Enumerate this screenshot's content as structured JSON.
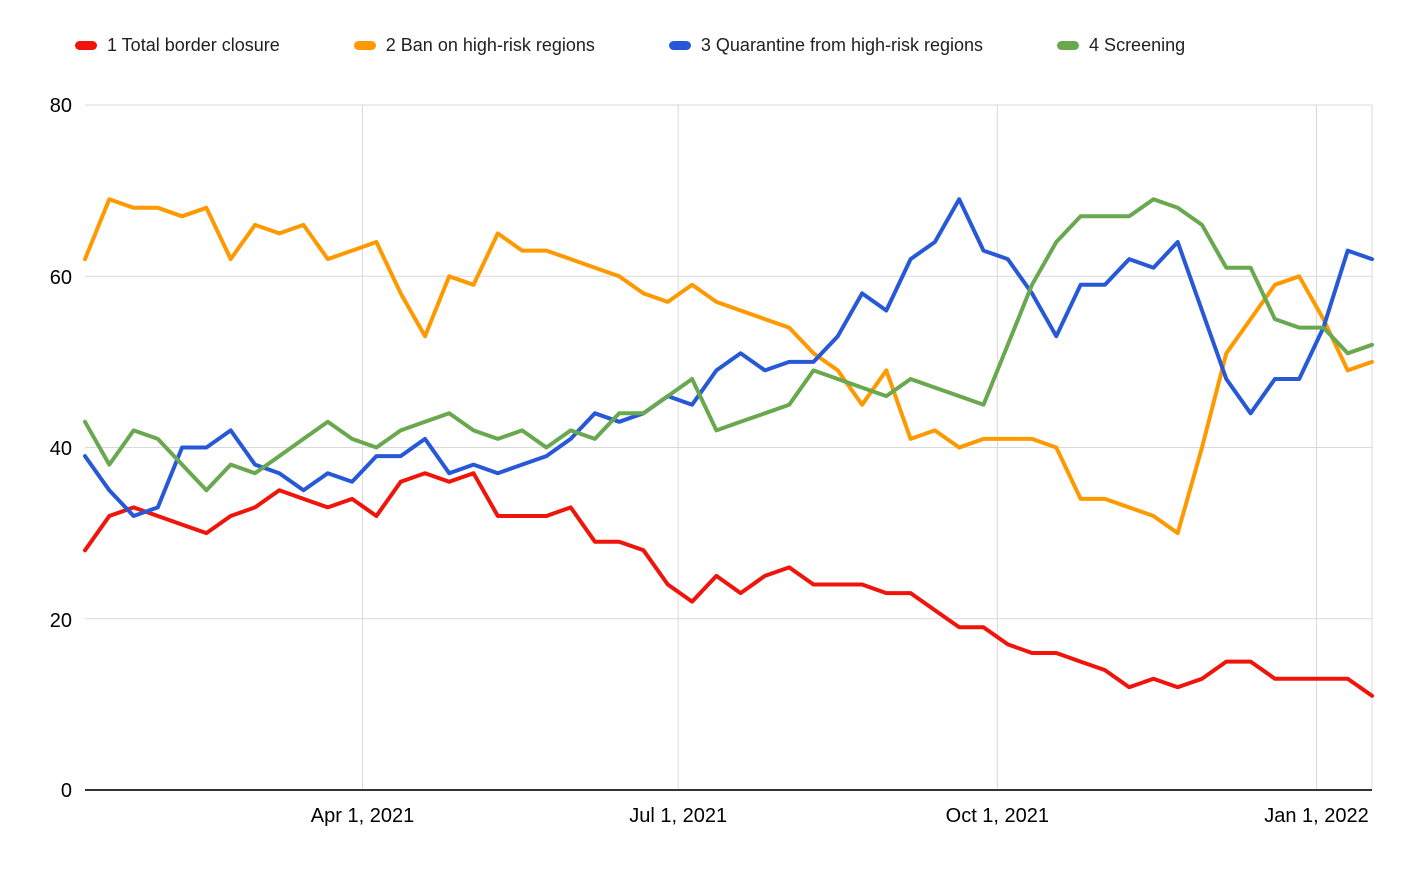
{
  "chart_data": {
    "type": "line",
    "title": "",
    "xlabel": "",
    "ylabel": "",
    "grid": true,
    "legend_position": "top",
    "ylim": [
      0,
      80
    ],
    "yticks": [
      0,
      20,
      40,
      60,
      80
    ],
    "x_dates": [
      "2021-01-11",
      "2021-01-18",
      "2021-01-25",
      "2021-02-01",
      "2021-02-08",
      "2021-02-15",
      "2021-02-22",
      "2021-03-01",
      "2021-03-08",
      "2021-03-15",
      "2021-03-22",
      "2021-03-29",
      "2021-04-05",
      "2021-04-12",
      "2021-04-19",
      "2021-04-26",
      "2021-05-03",
      "2021-05-10",
      "2021-05-17",
      "2021-05-24",
      "2021-05-31",
      "2021-06-07",
      "2021-06-14",
      "2021-06-21",
      "2021-06-28",
      "2021-07-05",
      "2021-07-12",
      "2021-07-19",
      "2021-07-26",
      "2021-08-02",
      "2021-08-09",
      "2021-08-16",
      "2021-08-23",
      "2021-08-30",
      "2021-09-06",
      "2021-09-13",
      "2021-09-20",
      "2021-09-27",
      "2021-10-04",
      "2021-10-11",
      "2021-10-18",
      "2021-10-25",
      "2021-11-01",
      "2021-11-08",
      "2021-11-15",
      "2021-11-22",
      "2021-11-29",
      "2021-12-06",
      "2021-12-13",
      "2021-12-20",
      "2021-12-27",
      "2022-01-03",
      "2022-01-10",
      "2022-01-17"
    ],
    "xticks": [
      {
        "date": "2021-04-01",
        "label": "Apr 1, 2021"
      },
      {
        "date": "2021-07-01",
        "label": "Jul 1, 2021"
      },
      {
        "date": "2021-10-01",
        "label": "Oct 1, 2021"
      },
      {
        "date": "2022-01-01",
        "label": "Jan 1, 2022"
      }
    ],
    "series": [
      {
        "name": "1 Total border closure",
        "color": "#f0140a",
        "values": [
          28,
          32,
          33,
          32,
          31,
          30,
          32,
          33,
          35,
          34,
          33,
          34,
          32,
          36,
          37,
          36,
          37,
          32,
          32,
          32,
          33,
          29,
          29,
          28,
          24,
          22,
          25,
          23,
          25,
          26,
          24,
          24,
          24,
          23,
          23,
          21,
          19,
          19,
          17,
          16,
          16,
          15,
          14,
          12,
          13,
          12,
          13,
          15,
          15,
          13,
          13,
          13,
          13,
          11
        ]
      },
      {
        "name": "2 Ban on high-risk regions",
        "color": "#ff9900",
        "values": [
          62,
          69,
          68,
          68,
          67,
          68,
          62,
          66,
          65,
          66,
          62,
          63,
          64,
          58,
          53,
          60,
          59,
          65,
          63,
          63,
          62,
          61,
          60,
          58,
          57,
          59,
          57,
          56,
          55,
          54,
          51,
          49,
          45,
          49,
          41,
          42,
          40,
          41,
          41,
          41,
          40,
          34,
          34,
          33,
          32,
          30,
          40,
          51,
          55,
          59,
          60,
          55,
          49,
          50
        ]
      },
      {
        "name": "3 Quarantine from high-risk regions",
        "color": "#2759d6",
        "values": [
          39,
          35,
          32,
          33,
          40,
          40,
          42,
          38,
          37,
          35,
          37,
          36,
          39,
          39,
          41,
          37,
          38,
          37,
          38,
          39,
          41,
          44,
          43,
          44,
          46,
          45,
          49,
          51,
          49,
          50,
          50,
          53,
          58,
          56,
          62,
          64,
          69,
          63,
          62,
          58,
          53,
          59,
          59,
          62,
          61,
          64,
          56,
          48,
          44,
          48,
          48,
          54,
          63,
          62
        ]
      },
      {
        "name": "4 Screening",
        "color": "#6aa84f",
        "values": [
          43,
          38,
          42,
          41,
          38,
          35,
          38,
          37,
          39,
          41,
          43,
          41,
          40,
          42,
          43,
          44,
          42,
          41,
          42,
          40,
          42,
          41,
          44,
          44,
          46,
          48,
          42,
          43,
          44,
          45,
          49,
          48,
          47,
          46,
          48,
          47,
          46,
          45,
          52,
          59,
          64,
          67,
          67,
          67,
          69,
          68,
          66,
          61,
          61,
          55,
          54,
          54,
          51,
          52
        ]
      }
    ],
    "colors": {
      "gridline": "#d9d9d9",
      "axis": "#333333",
      "label": "#000000",
      "legend_text": "#202124",
      "background": "#ffffff"
    }
  }
}
